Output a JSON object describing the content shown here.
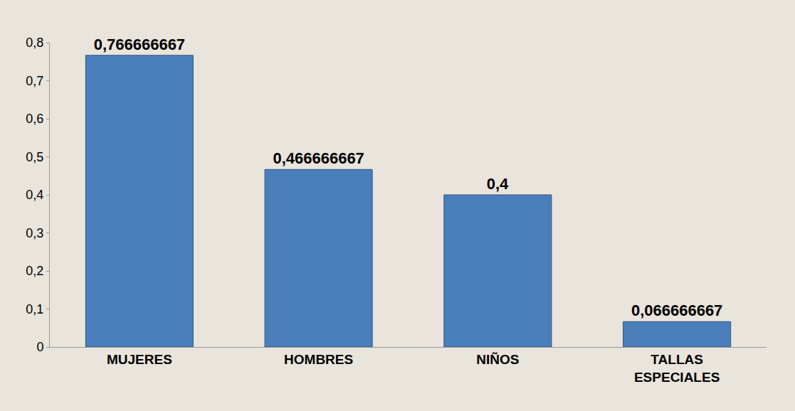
{
  "chart_data": {
    "type": "bar",
    "categories": [
      "MUJERES",
      "HOMBRES",
      "NIÑOS",
      "TALLAS ESPECIALES"
    ],
    "values": [
      0.766666667,
      0.466666667,
      0.4,
      0.066666667
    ],
    "value_labels": [
      "0,766666667",
      "0,466666667",
      "0,4",
      "0,066666667"
    ],
    "data_labels": true,
    "color": "#4a7ebb",
    "ylim": [
      0,
      0.8
    ],
    "yticks": [
      0,
      {
        "value": 0.1,
        "label": "0,1"
      },
      {
        "value": 0.2,
        "label": "0,2"
      },
      {
        "value": 0.3,
        "label": "0,3"
      },
      {
        "value": 0.4,
        "label": "0,4"
      },
      {
        "value": 0.5,
        "label": "0,5"
      },
      {
        "value": 0.6,
        "label": "0,6"
      },
      {
        "value": 0.7,
        "label": "0,7"
      },
      {
        "value": 0.8,
        "label": "0,8"
      }
    ],
    "grid": false
  }
}
